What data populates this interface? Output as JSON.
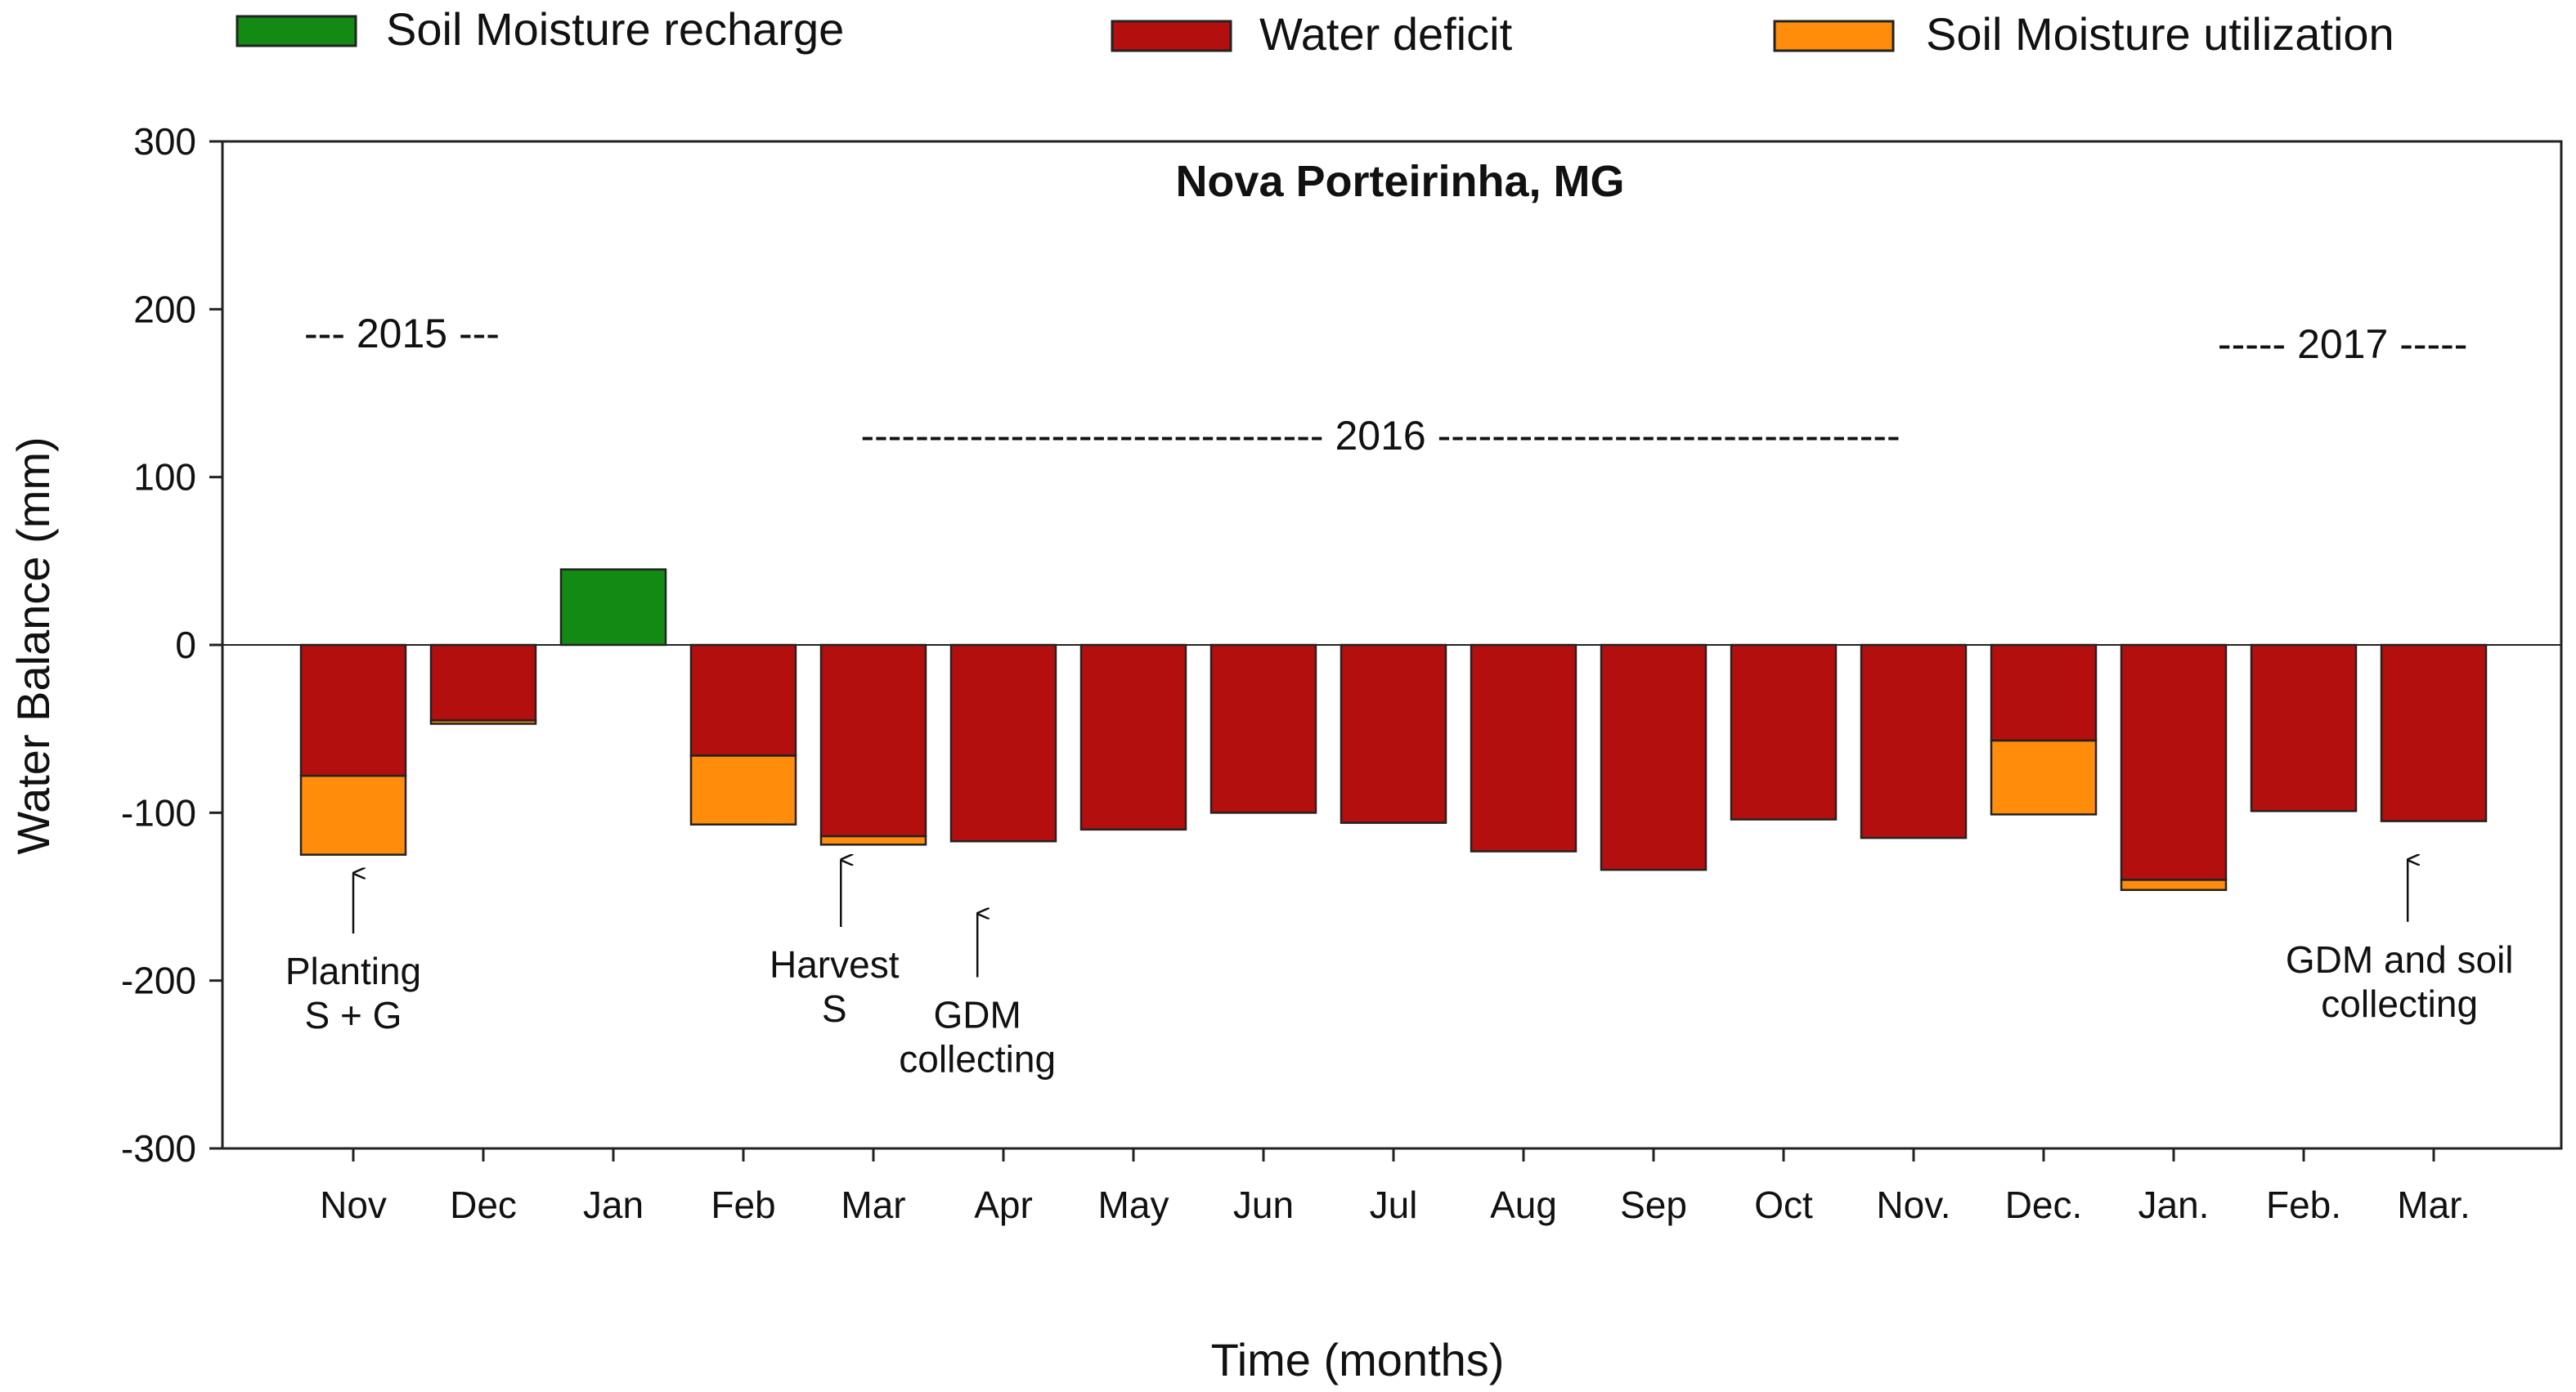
{
  "chart_data": {
    "type": "bar",
    "stacked": true,
    "title": "Nova Porteirinha, MG",
    "xlabel": "Time (months)",
    "ylabel": "Water Balance (mm)",
    "ylim": [
      -300,
      300
    ],
    "yticks": [
      300,
      200,
      100,
      0,
      -100,
      -200,
      -300
    ],
    "grid": false,
    "legend_position": "top",
    "categories": [
      "Nov",
      "Dec",
      "Jan",
      "Feb",
      "Mar",
      "Apr",
      "May",
      "Jun",
      "Jul",
      "Aug",
      "Sep",
      "Oct",
      "Nov.",
      "Dec.",
      "Jan.",
      "Feb.",
      "Mar."
    ],
    "series": [
      {
        "name": "Soil Moisture recharge",
        "color": "#138a13",
        "values": [
          0,
          0,
          45,
          0,
          0,
          0,
          0,
          0,
          0,
          0,
          0,
          0,
          0,
          0,
          0,
          0,
          0
        ]
      },
      {
        "name": "Water deficit",
        "color": "#b30f0f",
        "values": [
          -78,
          -45,
          0,
          -66,
          -114,
          -117,
          -110,
          -100,
          -106,
          -123,
          -134,
          -104,
          -115,
          -57,
          -140,
          -99,
          -105
        ]
      },
      {
        "name": "Soil Moisture utilization",
        "color": "#ff8c0a",
        "values": [
          -47,
          -2,
          0,
          -41,
          -5,
          0,
          0,
          0,
          0,
          0,
          0,
          0,
          0,
          -44,
          -6,
          0,
          0
        ]
      }
    ],
    "legend_order": [
      "Soil Moisture recharge",
      "Water deficit",
      "Soil Moisture utilization"
    ],
    "year_labels": [
      {
        "text": "--- 2015 ---",
        "center_month": 0.5
      },
      {
        "text": "---------------------------------- 2016 ----------------------------------",
        "center_month": 7.9
      },
      {
        "text": "----- 2017 -----",
        "center_month": 15.3
      }
    ],
    "annotations": [
      {
        "lines": [
          "Planting",
          "S + G"
        ],
        "month": 0,
        "arrow_tip": -136,
        "arrow_tail": -172
      },
      {
        "lines": [
          "Harvest",
          "S"
        ],
        "month": 3.75,
        "arrow_tip": -128,
        "arrow_tail": -168
      },
      {
        "lines": [
          "GDM",
          "collecting"
        ],
        "month": 4.8,
        "arrow_tip": -160,
        "arrow_tail": -198
      },
      {
        "lines": [
          "GDM and soil",
          "collecting"
        ],
        "month": 15.8,
        "arrow_tip": -128,
        "arrow_tail": -165
      }
    ]
  }
}
